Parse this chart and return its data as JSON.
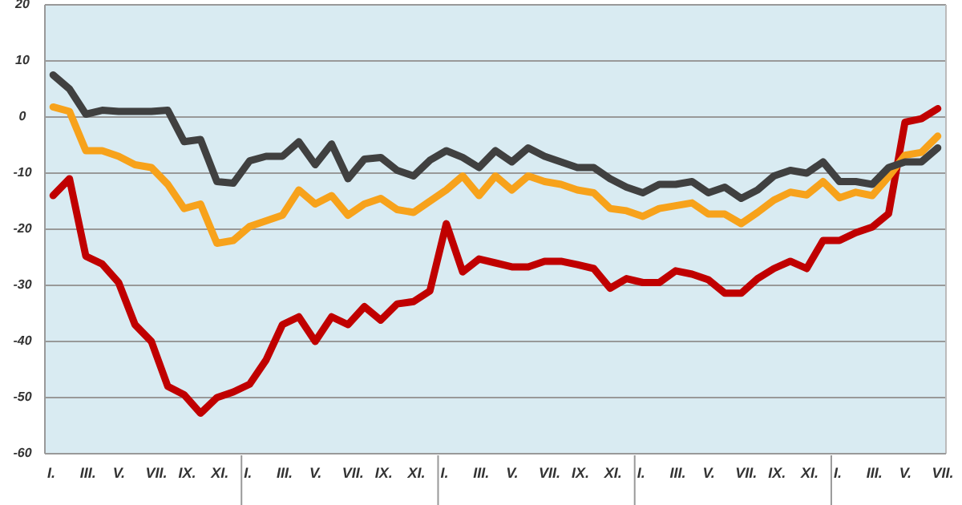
{
  "chart_data": {
    "type": "line",
    "categories": [
      "I.",
      null,
      "III.",
      null,
      "V.",
      null,
      "VII.",
      null,
      "IX.",
      null,
      "XI.",
      null,
      "I.",
      null,
      "III.",
      null,
      "V.",
      null,
      "VII.",
      null,
      "IX.",
      null,
      "XI.",
      null,
      "I.",
      null,
      "III.",
      null,
      "V.",
      null,
      "VII.",
      null,
      "IX.",
      null,
      "XI.",
      null,
      "I.",
      null,
      "III.",
      null,
      "V.",
      null,
      "VII.",
      null,
      "IX.",
      null,
      "XI.",
      null,
      "I.",
      null,
      "III.",
      null,
      "V.",
      null,
      "VII."
    ],
    "series": [
      {
        "color": "#c00000",
        "values": [
          -14,
          -11,
          -24.8,
          -26.2,
          -29.5,
          -37,
          -40,
          -48,
          -49.5,
          -52.8,
          -50,
          -49,
          -47.6,
          -43.3,
          -37,
          -35.6,
          -40,
          -35.6,
          -37,
          -33.8,
          -36.2,
          -33.3,
          -32.9,
          -31,
          -19,
          -27.6,
          -25.3,
          -26,
          -26.7,
          -26.7,
          -25.7,
          -25.7,
          -26.3,
          -27,
          -30.5,
          -28.8,
          -29.5,
          -29.5,
          -27.4,
          -28,
          -29,
          -31.4,
          -31.4,
          -28.8,
          -27,
          -25.7,
          -27,
          -22,
          -22,
          -20.6,
          -19.6,
          -17.2,
          -0.9,
          -0.3,
          1.5
        ]
      },
      {
        "color": "#f7a21b",
        "values": [
          1.8,
          1,
          -6,
          -6,
          -7,
          -8.5,
          -9,
          -12,
          -16.3,
          -15.5,
          -22.5,
          -22,
          -19.5,
          -18.5,
          -17.5,
          -13,
          -15.5,
          -14,
          -17.5,
          -15.5,
          -14.5,
          -16.5,
          -17,
          -15,
          -13,
          -10.5,
          -14,
          -10.5,
          -13,
          -10.5,
          -11.5,
          -12,
          -13,
          -13.5,
          -16.3,
          -16.7,
          -17.7,
          -16.3,
          -15.8,
          -15.3,
          -17.3,
          -17.3,
          -19,
          -17,
          -14.8,
          -13.4,
          -13.9,
          -11.5,
          -14.4,
          -13.4,
          -14,
          -10.6,
          -6.8,
          -6.3,
          -3.4
        ]
      },
      {
        "color": "#404040",
        "values": [
          7.5,
          5,
          0.5,
          1.2,
          1,
          1,
          1,
          1.2,
          -4.4,
          -4,
          -11.5,
          -11.8,
          -7.8,
          -7,
          -7,
          -4.4,
          -8.5,
          -4.8,
          -11,
          -7.5,
          -7.2,
          -9.5,
          -10.5,
          -7.7,
          -6,
          -7.2,
          -9,
          -6,
          -8,
          -5.5,
          -7,
          -8,
          -9,
          -9,
          -11,
          -12.5,
          -13.5,
          -12,
          -12,
          -11.5,
          -13.5,
          -12.5,
          -14.5,
          -13,
          -10.5,
          -9.5,
          -10,
          -8,
          -11.5,
          -11.5,
          -12,
          -9,
          -8,
          -8,
          -5.5
        ]
      }
    ],
    "ylim": [
      -60,
      20
    ],
    "yticks": [
      -60,
      -50,
      -40,
      -30,
      -20,
      -10,
      0,
      10,
      20
    ],
    "grid": "y"
  }
}
